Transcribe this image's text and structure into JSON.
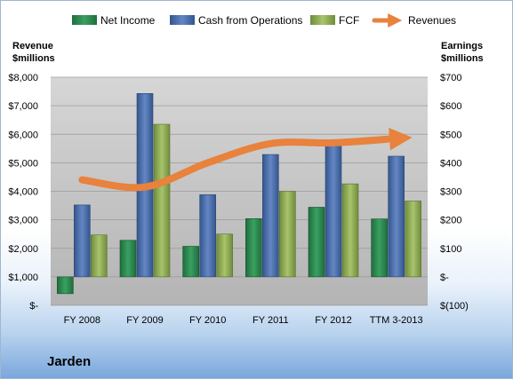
{
  "company": "Jarden",
  "chart_data": {
    "type": "bar",
    "categories": [
      "FY 2008",
      "FY 2009",
      "FY 2010",
      "FY 2011",
      "FY 2012",
      "TTM 3-2013"
    ],
    "left_axis": {
      "label_line1": "Revenue",
      "label_line2": "$millions",
      "ylim": [
        0,
        8000
      ],
      "ticks": [
        0,
        1000,
        2000,
        3000,
        4000,
        5000,
        6000,
        7000,
        8000
      ],
      "tick_labels": [
        "$-",
        "$1,000",
        "$2,000",
        "$3,000",
        "$4,000",
        "$5,000",
        "$6,000",
        "$7,000",
        "$8,000"
      ]
    },
    "right_axis": {
      "label_line1": "Earnings",
      "label_line2": "$millions",
      "ylim": [
        -100,
        700
      ],
      "ticks": [
        -100,
        0,
        100,
        200,
        300,
        400,
        500,
        600,
        700
      ],
      "tick_labels": [
        "$(100)",
        "$-",
        "$100",
        "$200",
        "$300",
        "$400",
        "$500",
        "$600",
        "$700"
      ]
    },
    "series": [
      {
        "name": "Net Income",
        "axis": "right",
        "color": "#2e8b50",
        "values": [
          -59,
          128,
          107,
          204,
          244,
          203
        ]
      },
      {
        "name": "Cash from Operations",
        "axis": "right",
        "color": "#4a6fad",
        "values": [
          252,
          643,
          288,
          429,
          481,
          423
        ]
      },
      {
        "name": "FCF",
        "axis": "right",
        "color": "#8fac55",
        "values": [
          147,
          535,
          150,
          300,
          326,
          266
        ]
      },
      {
        "name": "Revenues",
        "axis": "left",
        "type": "line",
        "color": "#e8823c",
        "values": [
          4400,
          4150,
          5000,
          5670,
          5700,
          5850
        ]
      }
    ],
    "legend_position": "top",
    "grid": true
  }
}
